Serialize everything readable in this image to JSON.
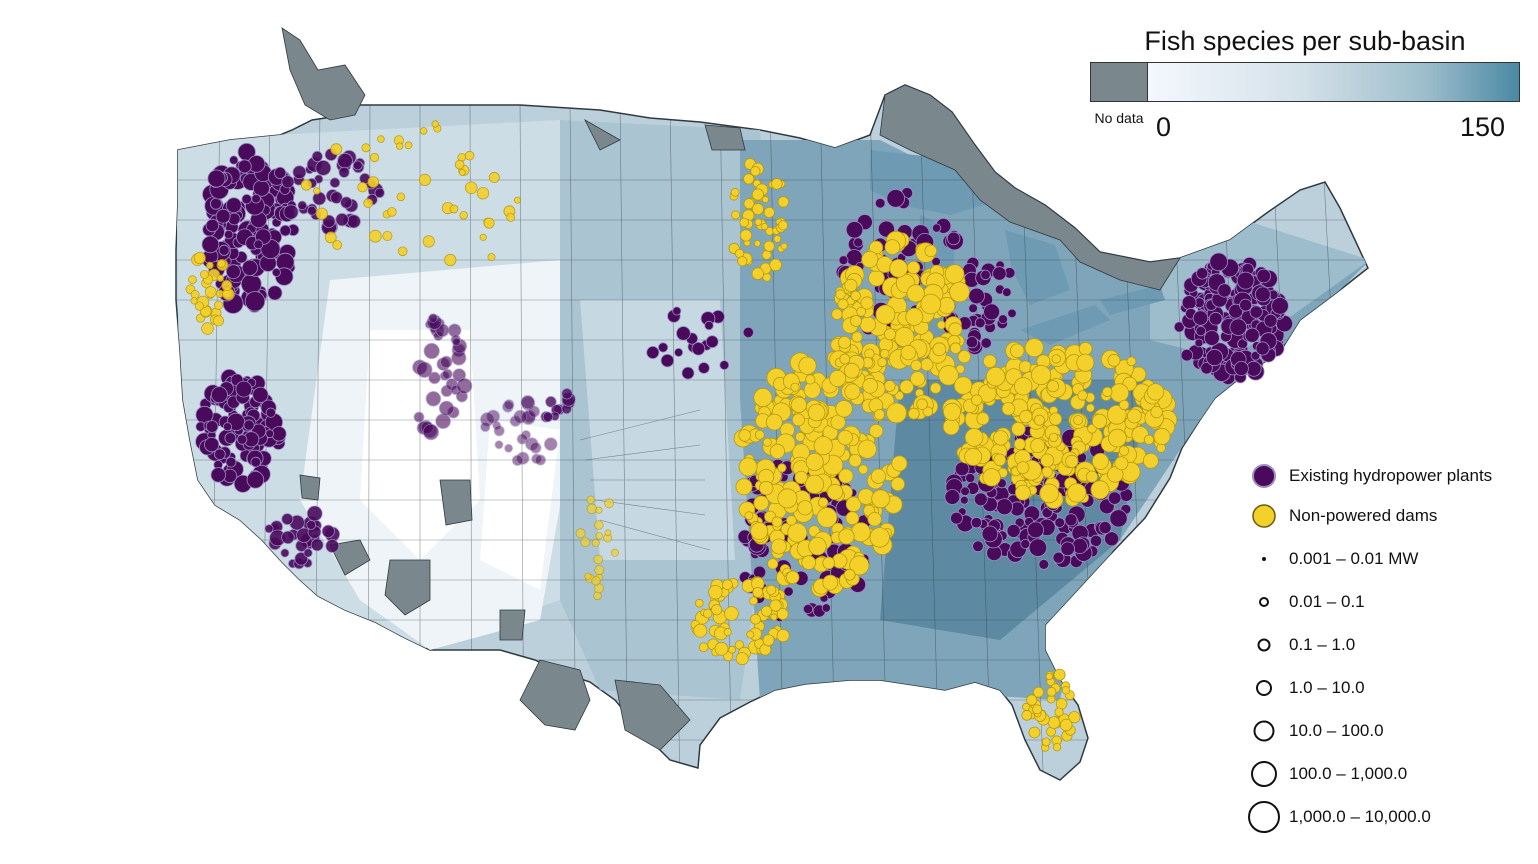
{
  "colorbar": {
    "title": "Fish species per sub-basin",
    "nodata_label": "No data",
    "min_label": "0",
    "max_label": "150",
    "min": 0,
    "max": 150,
    "nodata_color": "#7a878c",
    "ramp_colors": [
      "#f3f8fd",
      "#d5e2ea",
      "#9dbdcc",
      "#4b89a4"
    ]
  },
  "legend": {
    "hydropower": {
      "label": "Existing hydropower plants",
      "fill": "#4a0a5c",
      "stroke": "#9b8fc4"
    },
    "dams": {
      "label": "Non-powered dams",
      "fill": "#f4d02a",
      "stroke": "#b49a10"
    },
    "sizes": [
      {
        "label": "0.001 – 0.01 MW"
      },
      {
        "label": "0.01 – 0.1"
      },
      {
        "label": "0.1 – 1.0"
      },
      {
        "label": "1.0 – 10.0"
      },
      {
        "label": "10.0 – 100.0"
      },
      {
        "label": "100.0 – 1,000.0"
      },
      {
        "label": "1,000.0 – 10,000.0"
      }
    ]
  },
  "map": {
    "lake_color": "#6e9bb3",
    "boundary_color": "#2f3a40"
  }
}
